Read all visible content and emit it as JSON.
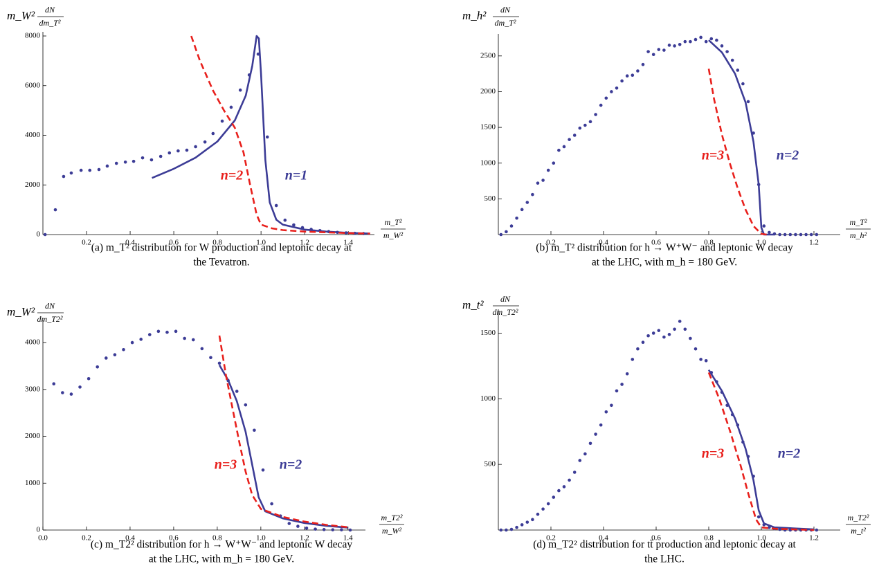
{
  "chart_data": [
    {
      "type": "line",
      "ylabel": {
        "prefix": "m_W²",
        "num": "dN",
        "den": "dm_T²"
      },
      "xlabel": {
        "num": "m_T²",
        "den": "m_W²"
      },
      "caption": [
        "(a) m_T² distribution for W production and leptonic decay at",
        "the Tevatron."
      ],
      "xlim": [
        0,
        1.52
      ],
      "ylim": [
        0,
        8000
      ],
      "xticks": [
        0.2,
        0.4,
        0.6,
        0.8,
        {
          "value": 1,
          "label": "1.0"
        },
        1.2,
        1.4
      ],
      "yticks": [
        0,
        2000,
        4000,
        6000,
        8000
      ],
      "series": [
        {
          "type": "scatter",
          "color": "#3c3c96",
          "x": [
            0.01,
            0.057,
            0.095,
            0.13,
            0.175,
            0.215,
            0.257,
            0.295,
            0.337,
            0.378,
            0.416,
            0.457,
            0.498,
            0.54,
            0.58,
            0.62,
            0.66,
            0.7,
            0.743,
            0.78,
            0.822,
            0.863,
            0.905,
            0.946,
            0.987,
            1.029,
            1.07,
            1.11,
            1.15,
            1.19,
            1.23,
            1.27,
            1.31,
            1.35,
            1.39,
            1.43,
            1.47
          ],
          "values": [
            0,
            1000,
            2340,
            2480,
            2590,
            2590,
            2620,
            2760,
            2870,
            2920,
            2950,
            3090,
            3010,
            3150,
            3290,
            3370,
            3400,
            3540,
            3730,
            4070,
            4570,
            5130,
            5820,
            6430,
            7270,
            3930,
            1170,
            580,
            390,
            280,
            210,
            160,
            120,
            90,
            70,
            50,
            40
          ]
        },
        {
          "type": "line",
          "name": "n=1",
          "color": "#3c3c96",
          "x": [
            0.5,
            0.6,
            0.7,
            0.8,
            0.88,
            0.93,
            0.96,
            0.98,
            0.99,
            1.0,
            1.02,
            1.04,
            1.07,
            1.1,
            1.2,
            1.3,
            1.4,
            1.5
          ],
          "values": [
            2280,
            2650,
            3100,
            3750,
            4600,
            5600,
            6800,
            8000,
            7900,
            6500,
            3000,
            1300,
            600,
            400,
            200,
            120,
            70,
            40
          ]
        },
        {
          "type": "line",
          "dashed": true,
          "name": "n=2",
          "color": "#e8201c",
          "x": [
            0.68,
            0.72,
            0.78,
            0.83,
            0.88,
            0.92,
            0.95,
            0.98,
            1.0,
            1.05,
            1.1,
            1.2,
            1.3,
            1.4,
            1.5
          ],
          "values": [
            8000,
            7000,
            5800,
            5000,
            4300,
            3300,
            2000,
            800,
            400,
            250,
            180,
            120,
            90,
            60,
            40
          ]
        }
      ]
    },
    {
      "type": "line",
      "ylabel": {
        "prefix": "m_h²",
        "num": "dN",
        "den": "dm_T²"
      },
      "xlabel": {
        "num": "m_T²",
        "den": "m_h²"
      },
      "caption": [
        "(b) m_T² distribution for h → W⁺W⁻ and leptonic W decay",
        "at the LHC, with m_h = 180 GeV."
      ],
      "xlim": [
        0,
        1.3
      ],
      "ylim": [
        0,
        2750
      ],
      "xticks": [
        0.2,
        0.4,
        0.6,
        0.8,
        {
          "value": 1,
          "label": "1.0"
        },
        1.2
      ],
      "yticks": [
        500,
        1000,
        1500,
        2000,
        2500
      ],
      "series": [
        {
          "type": "scatter",
          "color": "#3c3c96",
          "x": [
            0.01,
            0.03,
            0.05,
            0.07,
            0.09,
            0.11,
            0.13,
            0.15,
            0.17,
            0.19,
            0.21,
            0.23,
            0.25,
            0.27,
            0.29,
            0.31,
            0.33,
            0.35,
            0.37,
            0.39,
            0.41,
            0.43,
            0.45,
            0.47,
            0.49,
            0.51,
            0.53,
            0.55,
            0.57,
            0.59,
            0.61,
            0.63,
            0.65,
            0.67,
            0.69,
            0.71,
            0.73,
            0.75,
            0.77,
            0.79,
            0.81,
            0.83,
            0.85,
            0.87,
            0.89,
            0.91,
            0.93,
            0.95,
            0.97,
            0.99,
            1.01,
            1.03,
            1.05,
            1.07,
            1.09,
            1.11,
            1.13,
            1.15,
            1.17,
            1.19,
            1.21
          ],
          "values": [
            0,
            40,
            120,
            230,
            350,
            450,
            560,
            720,
            760,
            900,
            1000,
            1180,
            1230,
            1330,
            1390,
            1490,
            1530,
            1580,
            1680,
            1810,
            1910,
            2000,
            2050,
            2150,
            2220,
            2230,
            2290,
            2380,
            2560,
            2520,
            2590,
            2580,
            2650,
            2640,
            2660,
            2700,
            2700,
            2730,
            2760,
            2700,
            2740,
            2720,
            2640,
            2560,
            2440,
            2300,
            2110,
            1860,
            1420,
            700,
            120,
            30,
            10,
            0,
            0,
            0,
            0,
            0,
            0,
            0,
            0
          ]
        },
        {
          "type": "line",
          "name": "n=2",
          "color": "#3c3c96",
          "x": [
            0.8,
            0.85,
            0.9,
            0.94,
            0.97,
            0.99,
            1.0,
            1.01,
            1.05
          ],
          "values": [
            2720,
            2550,
            2250,
            1850,
            1300,
            700,
            100,
            0,
            0
          ]
        },
        {
          "type": "line",
          "dashed": true,
          "name": "n=3",
          "color": "#e8201c",
          "x": [
            0.8,
            0.82,
            0.85,
            0.88,
            0.91,
            0.94,
            0.97,
            1.0,
            1.02
          ],
          "values": [
            2320,
            1900,
            1400,
            1000,
            650,
            350,
            120,
            10,
            0
          ]
        }
      ]
    },
    {
      "type": "line",
      "ylabel": {
        "prefix": "m_W²",
        "num": "dN",
        "den": "dm_T2²"
      },
      "xlabel": {
        "num": "m_T2²",
        "den": "m_W²"
      },
      "caption": [
        "(c) m_T2² distribution for h → W⁺W⁻ and leptonic W decay",
        "at the LHC, with m_h = 180 GeV."
      ],
      "xlim": [
        0,
        1.48
      ],
      "ylim": [
        0,
        4400
      ],
      "xticks": [
        {
          "value": 0,
          "label": "0.0"
        },
        0.2,
        0.4,
        0.6,
        0.8,
        {
          "value": 1,
          "label": "1.0"
        },
        1.2,
        1.4
      ],
      "yticks": [
        0,
        1000,
        2000,
        3000,
        4000
      ],
      "series": [
        {
          "type": "scatter",
          "color": "#3c3c96",
          "x": [
            0.05,
            0.09,
            0.13,
            0.17,
            0.21,
            0.25,
            0.29,
            0.33,
            0.37,
            0.41,
            0.45,
            0.49,
            0.53,
            0.57,
            0.61,
            0.65,
            0.69,
            0.73,
            0.77,
            0.81,
            0.85,
            0.89,
            0.93,
            0.97,
            1.01,
            1.05,
            1.09,
            1.13,
            1.17,
            1.21,
            1.25,
            1.29,
            1.33,
            1.37,
            1.41
          ],
          "values": [
            3120,
            2930,
            2900,
            3050,
            3230,
            3480,
            3670,
            3740,
            3850,
            4000,
            4070,
            4170,
            4240,
            4220,
            4240,
            4090,
            4060,
            3870,
            3680,
            3560,
            3190,
            2960,
            2670,
            2130,
            1280,
            560,
            300,
            140,
            80,
            40,
            20,
            10,
            5,
            5,
            0
          ]
        },
        {
          "type": "line",
          "name": "n=2",
          "color": "#3c3c96",
          "x": [
            0.81,
            0.85,
            0.89,
            0.93,
            0.96,
            0.99,
            1.02,
            1.1,
            1.2,
            1.3,
            1.4
          ],
          "values": [
            3520,
            3200,
            2750,
            2100,
            1400,
            700,
            400,
            250,
            150,
            90,
            50
          ]
        },
        {
          "type": "line",
          "dashed": true,
          "name": "n=3",
          "color": "#e8201c",
          "x": [
            0.81,
            0.84,
            0.87,
            0.9,
            0.93,
            0.96,
            1.0,
            1.1,
            1.2,
            1.3,
            1.4
          ],
          "values": [
            4150,
            3300,
            2600,
            1900,
            1250,
            750,
            450,
            280,
            180,
            110,
            60
          ]
        }
      ]
    },
    {
      "type": "line",
      "ylabel": {
        "prefix": "m_t²",
        "num": "dN",
        "den": "dm_T2²"
      },
      "xlabel": {
        "num": "m_T2²",
        "den": "m_t²"
      },
      "caption": [
        "(d) m_T2² distribution for tt̄ production and leptonic decay at",
        "the LHC."
      ],
      "xlim": [
        0,
        1.3
      ],
      "ylim": [
        0,
        1650
      ],
      "xticks": [
        0.2,
        0.4,
        0.6,
        0.8,
        {
          "value": 1,
          "label": "1.0"
        },
        1.2
      ],
      "yticks": [
        500,
        1000,
        1500
      ],
      "series": [
        {
          "type": "scatter",
          "color": "#3c3c96",
          "x": [
            0.01,
            0.03,
            0.05,
            0.07,
            0.09,
            0.11,
            0.13,
            0.15,
            0.17,
            0.19,
            0.21,
            0.23,
            0.25,
            0.27,
            0.29,
            0.31,
            0.33,
            0.35,
            0.37,
            0.39,
            0.41,
            0.43,
            0.45,
            0.47,
            0.49,
            0.51,
            0.53,
            0.55,
            0.57,
            0.59,
            0.61,
            0.63,
            0.65,
            0.67,
            0.69,
            0.71,
            0.73,
            0.75,
            0.77,
            0.79,
            0.81,
            0.83,
            0.85,
            0.87,
            0.89,
            0.91,
            0.93,
            0.95,
            0.97,
            0.99,
            1.01,
            1.03,
            1.05,
            1.07,
            1.09,
            1.11,
            1.13,
            1.15,
            1.17,
            1.19,
            1.21
          ],
          "values": [
            0,
            0,
            5,
            20,
            40,
            60,
            80,
            120,
            160,
            200,
            250,
            300,
            330,
            380,
            440,
            530,
            580,
            660,
            730,
            800,
            900,
            950,
            1060,
            1110,
            1190,
            1300,
            1380,
            1430,
            1480,
            1500,
            1520,
            1470,
            1490,
            1530,
            1590,
            1530,
            1460,
            1380,
            1300,
            1290,
            1200,
            1130,
            1050,
            950,
            880,
            800,
            670,
            560,
            410,
            100,
            40,
            20,
            10,
            5,
            0,
            0,
            0,
            0,
            0,
            0,
            0
          ]
        },
        {
          "type": "line",
          "name": "n=2",
          "color": "#3c3c96",
          "x": [
            0.8,
            0.85,
            0.9,
            0.94,
            0.97,
            0.99,
            1.01,
            1.05,
            1.2
          ],
          "values": [
            1220,
            1060,
            850,
            620,
            380,
            150,
            50,
            20,
            5
          ]
        },
        {
          "type": "line",
          "dashed": true,
          "name": "n=3",
          "color": "#e8201c",
          "x": [
            0.8,
            0.84,
            0.88,
            0.92,
            0.95,
            0.98,
            1.0,
            1.05,
            1.2
          ],
          "values": [
            1200,
            1000,
            760,
            500,
            280,
            80,
            20,
            10,
            0
          ]
        }
      ]
    }
  ]
}
